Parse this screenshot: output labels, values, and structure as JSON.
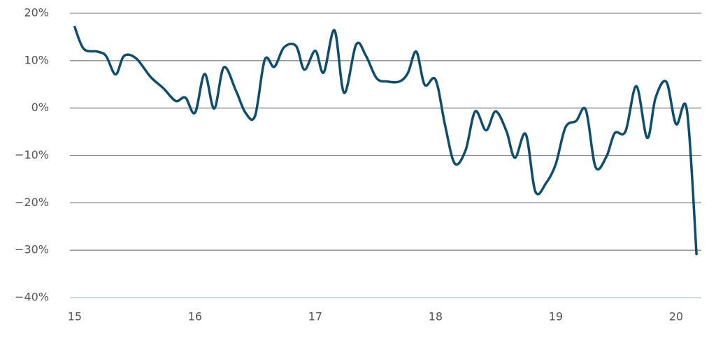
{
  "chart_data": {
    "type": "line",
    "x": [
      15.0,
      15.075,
      15.19,
      15.26,
      15.34,
      15.41,
      15.51,
      15.63,
      15.74,
      15.84,
      15.92,
      16.0,
      16.08,
      16.16,
      16.24,
      16.34,
      16.42,
      16.5,
      16.58,
      16.66,
      16.74,
      16.84,
      16.91,
      17.0,
      17.07,
      17.16,
      17.24,
      17.34,
      17.42,
      17.51,
      17.6,
      17.7,
      17.77,
      17.84,
      17.91,
      18.0,
      18.08,
      18.16,
      18.25,
      18.33,
      18.42,
      18.5,
      18.59,
      18.66,
      18.75,
      18.83,
      18.92,
      19.0,
      19.08,
      19.17,
      19.25,
      19.33,
      19.42,
      19.49,
      19.58,
      19.67,
      19.76,
      19.83,
      19.92,
      20.0,
      20.09,
      20.17
    ],
    "series": [
      {
        "color": "#0e4d6b",
        "values": [
          17.1,
          12.5,
          11.9,
          11.0,
          7.1,
          11.0,
          10.5,
          6.6,
          4.1,
          1.5,
          2.2,
          -1.0,
          7.2,
          -0.1,
          8.6,
          3.7,
          -1.0,
          -1.6,
          10.2,
          8.7,
          12.8,
          13.1,
          8.1,
          12.1,
          7.5,
          16.4,
          3.2,
          13.4,
          11.1,
          6.3,
          5.6,
          5.6,
          7.4,
          11.9,
          4.9,
          6.0,
          -3.7,
          -11.7,
          -8.9,
          -0.7,
          -4.7,
          -0.7,
          -4.9,
          -10.5,
          -5.5,
          -17.6,
          -15.8,
          -11.8,
          -4.1,
          -2.7,
          -0.4,
          -12.4,
          -10.3,
          -5.3,
          -4.9,
          4.6,
          -6.3,
          2.2,
          5.5,
          -3.4,
          -0.4,
          -30.8
        ]
      }
    ],
    "xlim": [
      14.96,
      20.21
    ],
    "xticks": [
      15,
      16,
      17,
      18,
      19,
      20
    ],
    "ylim": [
      -40,
      20
    ],
    "yticks": [
      {
        "value": -40,
        "label": "−40%"
      },
      {
        "value": -30,
        "label": "−30%"
      },
      {
        "value": -20,
        "label": "−20%"
      },
      {
        "value": -10,
        "label": "−10%"
      },
      {
        "value": 0,
        "label": "0%"
      },
      {
        "value": 10,
        "label": "10%"
      },
      {
        "value": 20,
        "label": "20%"
      }
    ],
    "grid": true
  }
}
